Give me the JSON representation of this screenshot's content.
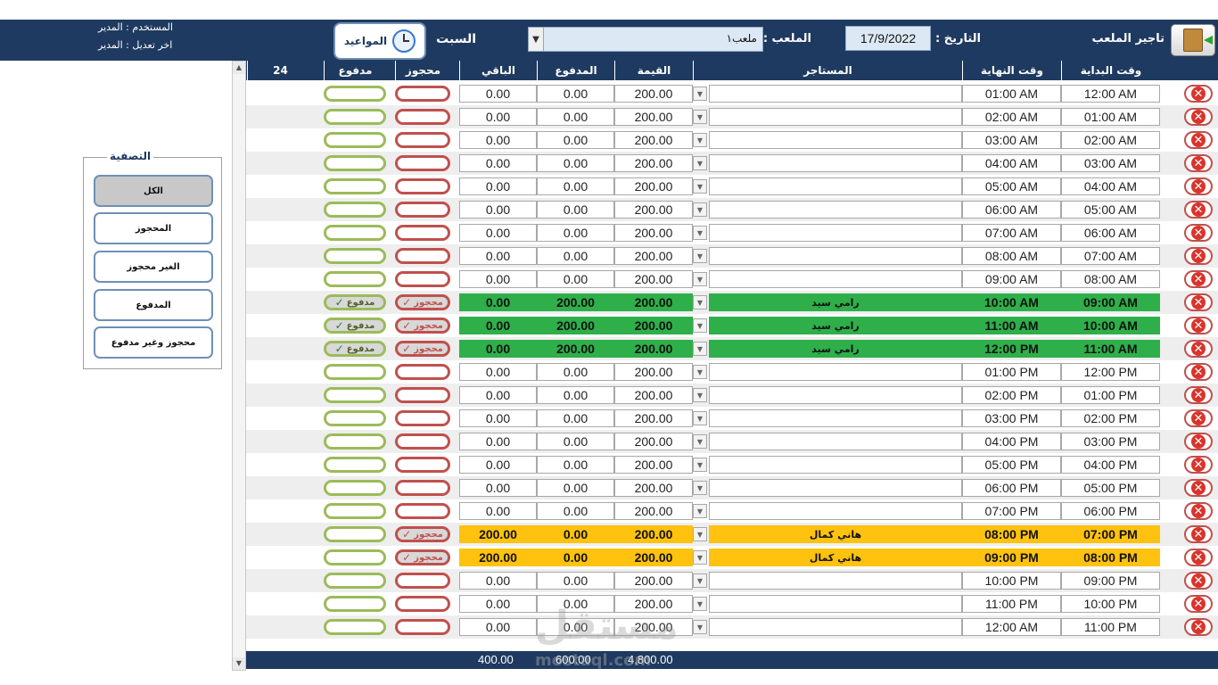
{
  "header": {
    "exit_label": "تاجير الملعب",
    "date_label": "التاريخ :",
    "date_value": "17/9/2022",
    "field_label": "الملعب :",
    "field_value": "ملعب١",
    "day": "السبت",
    "appointments_label": "المواعيد",
    "user_line": "المستخدم : المدير",
    "last_edit_line": "اخر تعديل : المدير"
  },
  "columns": {
    "start": "وقت البداية",
    "end": "وقت النهاية",
    "renter": "المستاجر",
    "value": "القيمة",
    "paid": "المدفوع",
    "remaining": "الباقي",
    "booked": "محجوز",
    "paid_flag": "مدفوع",
    "count": "24"
  },
  "filter": {
    "title": "التصفية",
    "buttons": [
      "الكل",
      "المحجوز",
      "الغير محجوز",
      "المدفوع",
      "محجوز وغير مدفوع"
    ]
  },
  "pill_labels": {
    "booked": "محجوز",
    "paid": "مدفوع",
    "check": "✓"
  },
  "rows": [
    {
      "start": "12:00 AM",
      "end": "01:00 AM",
      "renter": "",
      "value": "200.00",
      "paid": "0.00",
      "remaining": "0.00",
      "status": "empty"
    },
    {
      "start": "01:00 AM",
      "end": "02:00 AM",
      "renter": "",
      "value": "200.00",
      "paid": "0.00",
      "remaining": "0.00",
      "status": "empty"
    },
    {
      "start": "02:00 AM",
      "end": "03:00 AM",
      "renter": "",
      "value": "200.00",
      "paid": "0.00",
      "remaining": "0.00",
      "status": "empty"
    },
    {
      "start": "03:00 AM",
      "end": "04:00 AM",
      "renter": "",
      "value": "200.00",
      "paid": "0.00",
      "remaining": "0.00",
      "status": "empty"
    },
    {
      "start": "04:00 AM",
      "end": "05:00 AM",
      "renter": "",
      "value": "200.00",
      "paid": "0.00",
      "remaining": "0.00",
      "status": "empty"
    },
    {
      "start": "05:00 AM",
      "end": "06:00 AM",
      "renter": "",
      "value": "200.00",
      "paid": "0.00",
      "remaining": "0.00",
      "status": "empty"
    },
    {
      "start": "06:00 AM",
      "end": "07:00 AM",
      "renter": "",
      "value": "200.00",
      "paid": "0.00",
      "remaining": "0.00",
      "status": "empty"
    },
    {
      "start": "07:00 AM",
      "end": "08:00 AM",
      "renter": "",
      "value": "200.00",
      "paid": "0.00",
      "remaining": "0.00",
      "status": "empty"
    },
    {
      "start": "08:00 AM",
      "end": "09:00 AM",
      "renter": "",
      "value": "200.00",
      "paid": "0.00",
      "remaining": "0.00",
      "status": "empty"
    },
    {
      "start": "09:00 AM",
      "end": "10:00 AM",
      "renter": "رامي سيد",
      "value": "200.00",
      "paid": "200.00",
      "remaining": "0.00",
      "status": "paid"
    },
    {
      "start": "10:00 AM",
      "end": "11:00 AM",
      "renter": "رامي سيد",
      "value": "200.00",
      "paid": "200.00",
      "remaining": "0.00",
      "status": "paid"
    },
    {
      "start": "11:00 AM",
      "end": "12:00 PM",
      "renter": "رامي سيد",
      "value": "200.00",
      "paid": "200.00",
      "remaining": "0.00",
      "status": "paid"
    },
    {
      "start": "12:00 PM",
      "end": "01:00 PM",
      "renter": "",
      "value": "200.00",
      "paid": "0.00",
      "remaining": "0.00",
      "status": "empty"
    },
    {
      "start": "01:00 PM",
      "end": "02:00 PM",
      "renter": "",
      "value": "200.00",
      "paid": "0.00",
      "remaining": "0.00",
      "status": "empty"
    },
    {
      "start": "02:00 PM",
      "end": "03:00 PM",
      "renter": "",
      "value": "200.00",
      "paid": "0.00",
      "remaining": "0.00",
      "status": "empty"
    },
    {
      "start": "03:00 PM",
      "end": "04:00 PM",
      "renter": "",
      "value": "200.00",
      "paid": "0.00",
      "remaining": "0.00",
      "status": "empty"
    },
    {
      "start": "04:00 PM",
      "end": "05:00 PM",
      "renter": "",
      "value": "200.00",
      "paid": "0.00",
      "remaining": "0.00",
      "status": "empty"
    },
    {
      "start": "05:00 PM",
      "end": "06:00 PM",
      "renter": "",
      "value": "200.00",
      "paid": "0.00",
      "remaining": "0.00",
      "status": "empty"
    },
    {
      "start": "06:00 PM",
      "end": "07:00 PM",
      "renter": "",
      "value": "200.00",
      "paid": "0.00",
      "remaining": "0.00",
      "status": "empty"
    },
    {
      "start": "07:00 PM",
      "end": "08:00 PM",
      "renter": "هاني كمال",
      "value": "200.00",
      "paid": "0.00",
      "remaining": "200.00",
      "status": "booked"
    },
    {
      "start": "08:00 PM",
      "end": "09:00 PM",
      "renter": "هاني كمال",
      "value": "200.00",
      "paid": "0.00",
      "remaining": "200.00",
      "status": "booked"
    },
    {
      "start": "09:00 PM",
      "end": "10:00 PM",
      "renter": "",
      "value": "200.00",
      "paid": "0.00",
      "remaining": "0.00",
      "status": "empty"
    },
    {
      "start": "10:00 PM",
      "end": "11:00 PM",
      "renter": "",
      "value": "200.00",
      "paid": "0.00",
      "remaining": "0.00",
      "status": "empty"
    },
    {
      "start": "11:00 PM",
      "end": "12:00 AM",
      "renter": "",
      "value": "200.00",
      "paid": "0.00",
      "remaining": "0.00",
      "status": "empty"
    }
  ],
  "totals": {
    "remaining": "400.00",
    "paid": "600.00",
    "value": "4,800.00"
  },
  "watermark": {
    "arabic": "مستقل",
    "latin": "mostaql.com"
  },
  "colors": {
    "header_bg": "#1f3a60",
    "paid_row": "#2eaf4a",
    "booked_row": "#ffc20e",
    "booked_pill": "#c0504d",
    "paid_pill": "#9bbb59"
  }
}
